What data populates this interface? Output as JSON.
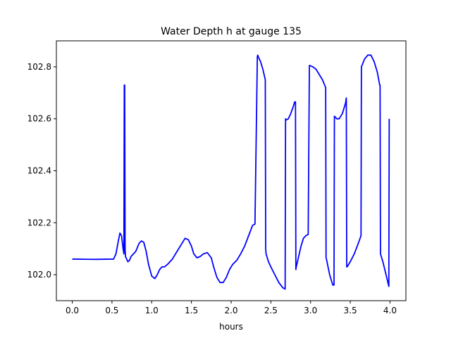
{
  "chart_data": {
    "type": "line",
    "title": "Water Depth h at gauge 135",
    "xlabel": "hours",
    "ylabel": "",
    "xlim": [
      -0.2,
      4.2
    ],
    "ylim": [
      101.9,
      102.9
    ],
    "xticks": [
      0.0,
      0.5,
      1.0,
      1.5,
      2.0,
      2.5,
      3.0,
      3.5,
      4.0
    ],
    "xtick_labels": [
      "0.0",
      "0.5",
      "1.0",
      "1.5",
      "2.0",
      "2.5",
      "3.0",
      "3.5",
      "4.0"
    ],
    "yticks": [
      102.0,
      102.2,
      102.4,
      102.6,
      102.8
    ],
    "ytick_labels": [
      "102.0",
      "102.2",
      "102.4",
      "102.6",
      "102.8"
    ],
    "grid": false,
    "series": [
      {
        "color": "#0000ff",
        "x": [
          0.0,
          0.3,
          0.52,
          0.55,
          0.58,
          0.6,
          0.62,
          0.64,
          0.65,
          0.655,
          0.66,
          0.665,
          0.67,
          0.7,
          0.72,
          0.74,
          0.77,
          0.8,
          0.84,
          0.87,
          0.9,
          0.93,
          0.96,
          1.0,
          1.04,
          1.07,
          1.1,
          1.13,
          1.16,
          1.2,
          1.26,
          1.32,
          1.38,
          1.42,
          1.46,
          1.5,
          1.53,
          1.57,
          1.61,
          1.65,
          1.7,
          1.75,
          1.78,
          1.82,
          1.86,
          1.9,
          1.94,
          1.98,
          2.02,
          2.07,
          2.12,
          2.17,
          2.22,
          2.27,
          2.3,
          2.33,
          2.335,
          2.34,
          2.37,
          2.4,
          2.43,
          2.435,
          2.44,
          2.47,
          2.5,
          2.55,
          2.6,
          2.65,
          2.68,
          2.685,
          2.69,
          2.72,
          2.75,
          2.78,
          2.8,
          2.81,
          2.815,
          2.82,
          2.85,
          2.88,
          2.91,
          2.94,
          2.97,
          2.985,
          2.99,
          3.03,
          3.07,
          3.11,
          3.15,
          3.19,
          3.195,
          3.2,
          3.24,
          3.28,
          3.295,
          3.3,
          3.33,
          3.36,
          3.4,
          3.44,
          3.45,
          3.455,
          3.46,
          3.5,
          3.55,
          3.6,
          3.635,
          3.64,
          3.68,
          3.72,
          3.76,
          3.8,
          3.84,
          3.87,
          3.875,
          3.88,
          3.91,
          3.95,
          3.985,
          3.99
        ],
        "y": [
          102.06,
          102.059,
          102.06,
          102.08,
          102.13,
          102.16,
          102.15,
          102.1,
          102.08,
          102.73,
          102.73,
          102.1,
          102.07,
          102.05,
          102.055,
          102.07,
          102.08,
          102.09,
          102.12,
          102.13,
          102.125,
          102.09,
          102.04,
          101.995,
          101.985,
          102.0,
          102.02,
          102.03,
          102.03,
          102.04,
          102.06,
          102.09,
          102.12,
          102.14,
          102.135,
          102.11,
          102.08,
          102.065,
          102.07,
          102.08,
          102.085,
          102.065,
          102.03,
          101.99,
          101.97,
          101.97,
          101.99,
          102.02,
          102.04,
          102.055,
          102.08,
          102.11,
          102.15,
          102.19,
          102.195,
          102.84,
          102.845,
          102.84,
          102.82,
          102.79,
          102.75,
          102.1,
          102.08,
          102.05,
          102.03,
          102.0,
          101.97,
          101.95,
          101.945,
          102.6,
          102.595,
          102.6,
          102.62,
          102.645,
          102.665,
          102.665,
          102.02,
          102.03,
          102.07,
          102.11,
          102.14,
          102.15,
          102.155,
          102.805,
          102.805,
          102.8,
          102.79,
          102.77,
          102.75,
          102.72,
          102.065,
          102.06,
          102.0,
          101.96,
          101.96,
          102.61,
          102.6,
          102.6,
          102.62,
          102.66,
          102.68,
          102.03,
          102.03,
          102.05,
          102.08,
          102.12,
          102.15,
          102.8,
          102.83,
          102.845,
          102.845,
          102.82,
          102.78,
          102.73,
          102.73,
          102.08,
          102.05,
          102.0,
          101.955,
          102.6
        ]
      }
    ]
  }
}
